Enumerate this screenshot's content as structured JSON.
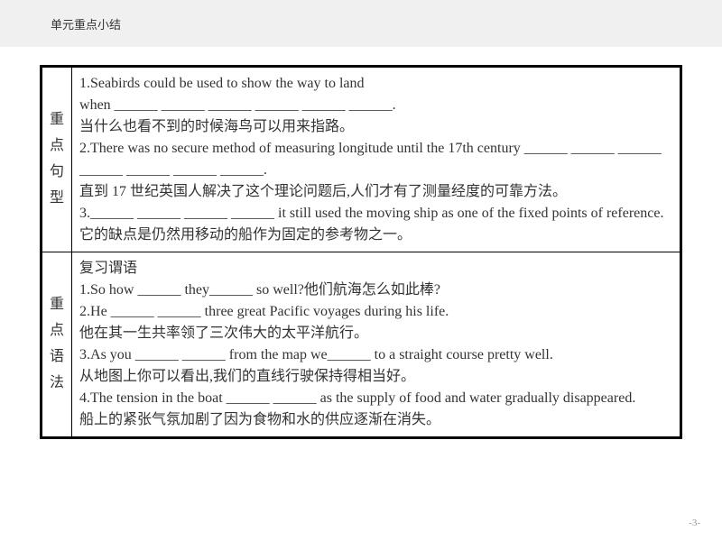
{
  "header": {
    "title": "单元重点小结"
  },
  "table": {
    "row1": {
      "label_c1": "重",
      "label_c2": "点",
      "label_c3": "句",
      "label_c4": "型",
      "content_l1": "1.Seabirds could be used to show the way to land",
      "content_l2": "when ______ ______ ______ ______ ______ ______.",
      "content_l3": "当什么也看不到的时候海鸟可以用来指路。",
      "content_l4": "2.There was no secure method of measuring longitude until the 17th century ______ ______ ______ ______ ______ ______ ______.",
      "content_l5": "直到 17 世纪英国人解决了这个理论问题后,人们才有了测量经度的可靠方法。",
      "content_l6": "3.______ ______ ______ ______ it still used the moving ship as one of the fixed points of reference.",
      "content_l7": "它的缺点是仍然用移动的船作为固定的参考物之一。"
    },
    "row2": {
      "label_c1": "重",
      "label_c2": "点",
      "label_c3": "语",
      "label_c4": "法",
      "content_l1": "复习谓语",
      "content_l2": "1.So how ______ they______ so well?他们航海怎么如此棒?",
      "content_l3": "2.He ______ ______ three great Pacific voyages during his life.",
      "content_l4": "他在其一生共率领了三次伟大的太平洋航行。",
      "content_l5": "3.As you ______ ______ from the map we______ to a straight course pretty well.",
      "content_l6": "从地图上你可以看出,我们的直线行驶保持得相当好。",
      "content_l7": "4.The tension in the boat ______ ______ as the supply of food and water gradually disappeared.",
      "content_l8": "船上的紧张气氛加剧了因为食物和水的供应逐渐在消失。"
    }
  },
  "page_number": "-3-",
  "colors": {
    "header_bg": "#f0f0f0",
    "border": "#000000",
    "text": "#333333",
    "page_num": "#999999",
    "body_bg": "#ffffff"
  }
}
